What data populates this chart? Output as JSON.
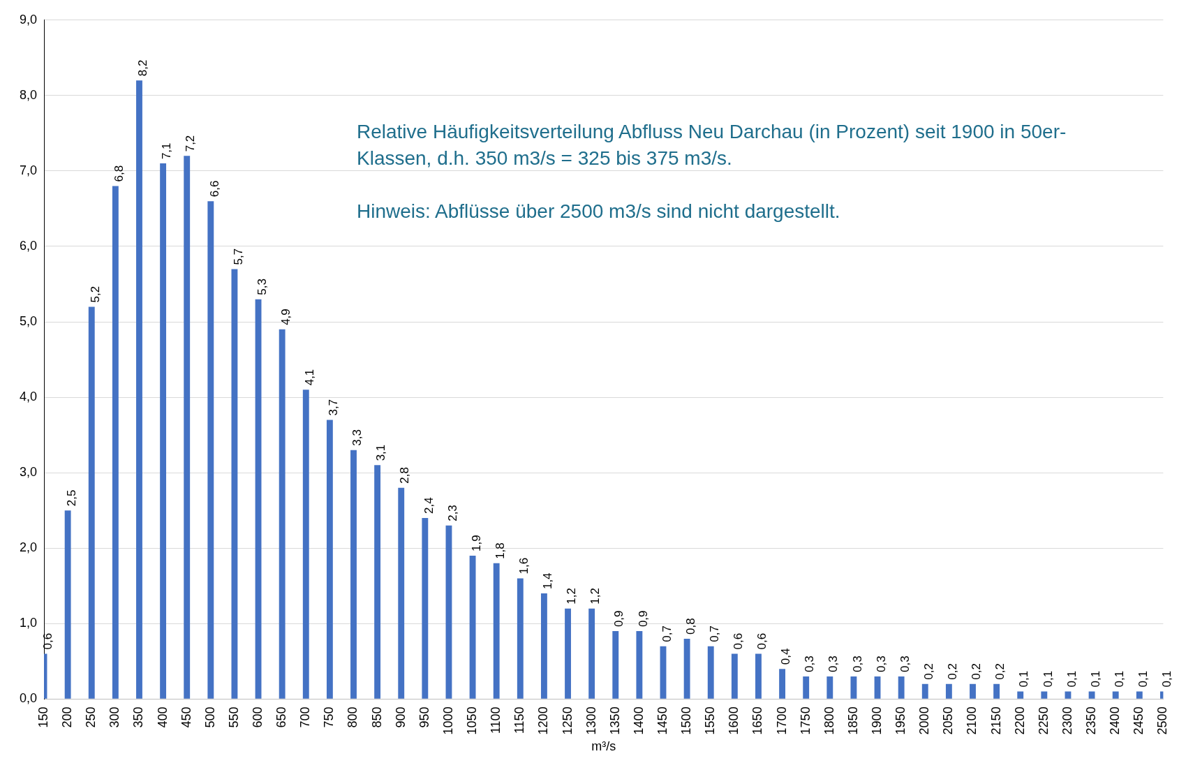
{
  "chart_data": {
    "type": "bar",
    "xlabel": "m³/s",
    "annotations": [
      "Relative Häufigkeitsverteilung Abfluss Neu Darchau (in Prozent) seit 1900 in 50er-Klassen, d.h. 350 m3/s = 325 bis 375 m3/s.",
      "Hinweis: Abflüsse über 2500 m3/s sind nicht dargestellt."
    ],
    "categories": [
      "150",
      "200",
      "250",
      "300",
      "350",
      "400",
      "450",
      "500",
      "550",
      "600",
      "650",
      "700",
      "750",
      "800",
      "850",
      "900",
      "950",
      "1000",
      "1050",
      "1100",
      "1150",
      "1200",
      "1250",
      "1300",
      "1350",
      "1400",
      "1450",
      "1500",
      "1550",
      "1600",
      "1650",
      "1700",
      "1750",
      "1800",
      "1850",
      "1900",
      "1950",
      "2000",
      "2050",
      "2100",
      "2150",
      "2200",
      "2250",
      "2300",
      "2350",
      "2400",
      "2450",
      "2500"
    ],
    "values": [
      0.6,
      2.5,
      5.2,
      6.8,
      8.2,
      7.1,
      7.2,
      6.6,
      5.7,
      5.3,
      4.9,
      4.1,
      3.7,
      3.3,
      3.1,
      2.8,
      2.4,
      2.3,
      1.9,
      1.8,
      1.6,
      1.4,
      1.2,
      1.2,
      0.9,
      0.9,
      0.7,
      0.8,
      0.7,
      0.6,
      0.6,
      0.4,
      0.3,
      0.3,
      0.3,
      0.3,
      0.3,
      0.2,
      0.2,
      0.2,
      0.2,
      0.1,
      0.1,
      0.1,
      0.1,
      0.1,
      0.1,
      0.1
    ],
    "value_labels": [
      "0,6",
      "2,5",
      "5,2",
      "6,8",
      "8,2",
      "7,1",
      "7,2",
      "6,6",
      "5,7",
      "5,3",
      "4,9",
      "4,1",
      "3,7",
      "3,3",
      "3,1",
      "2,8",
      "2,4",
      "2,3",
      "1,9",
      "1,8",
      "1,6",
      "1,4",
      "1,2",
      "1,2",
      "0,9",
      "0,9",
      "0,7",
      "0,8",
      "0,7",
      "0,6",
      "0,6",
      "0,4",
      "0,3",
      "0,3",
      "0,3",
      "0,3",
      "0,3",
      "0,2",
      "0,2",
      "0,2",
      "0,2",
      "0,1",
      "0,1",
      "0,1",
      "0,1",
      "0,1",
      "0,1",
      "0,1"
    ],
    "color": "#4472c4",
    "ylim": [
      0,
      9
    ],
    "yticks": [
      {
        "value": 0,
        "label": "0,0"
      },
      {
        "value": 1,
        "label": "1,0"
      },
      {
        "value": 2,
        "label": "2,0"
      },
      {
        "value": 3,
        "label": "3,0"
      },
      {
        "value": 4,
        "label": "4,0"
      },
      {
        "value": 5,
        "label": "5,0"
      },
      {
        "value": 6,
        "label": "6,0"
      },
      {
        "value": 7,
        "label": "7,0"
      },
      {
        "value": 8,
        "label": "8,0"
      },
      {
        "value": 9,
        "label": "9,0"
      }
    ],
    "grid": "y",
    "legend": false
  }
}
